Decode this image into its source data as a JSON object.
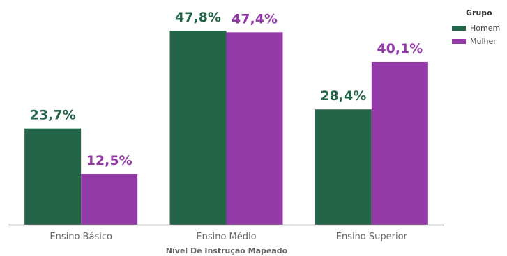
{
  "colors": {
    "homem": "#24654a",
    "mulher": "#943aa8",
    "axis": "#999999",
    "text": "#666666"
  },
  "legend": {
    "title": "Grupo",
    "items": [
      {
        "label": "Homem",
        "color": "#24654a"
      },
      {
        "label": "Mulher",
        "color": "#943aa8"
      }
    ]
  },
  "chart_data": {
    "type": "bar",
    "categories": [
      "Ensino Básico",
      "Ensino Médio",
      "Ensino Superior"
    ],
    "series": [
      {
        "name": "Homem",
        "values": [
          23.7,
          47.8,
          28.4
        ],
        "labels": [
          "23,7%",
          "47,8%",
          "28,4%"
        ],
        "color": "#24654a"
      },
      {
        "name": "Mulher",
        "values": [
          12.5,
          47.4,
          40.1
        ],
        "labels": [
          "12,5%",
          "47,4%",
          "40,1%"
        ],
        "color": "#943aa8"
      }
    ],
    "title": "",
    "xlabel": "Nível De Instrução Mapeado",
    "ylabel": "",
    "ylim": [
      0,
      47.8
    ],
    "grid": false,
    "legend_position": "top-right"
  }
}
